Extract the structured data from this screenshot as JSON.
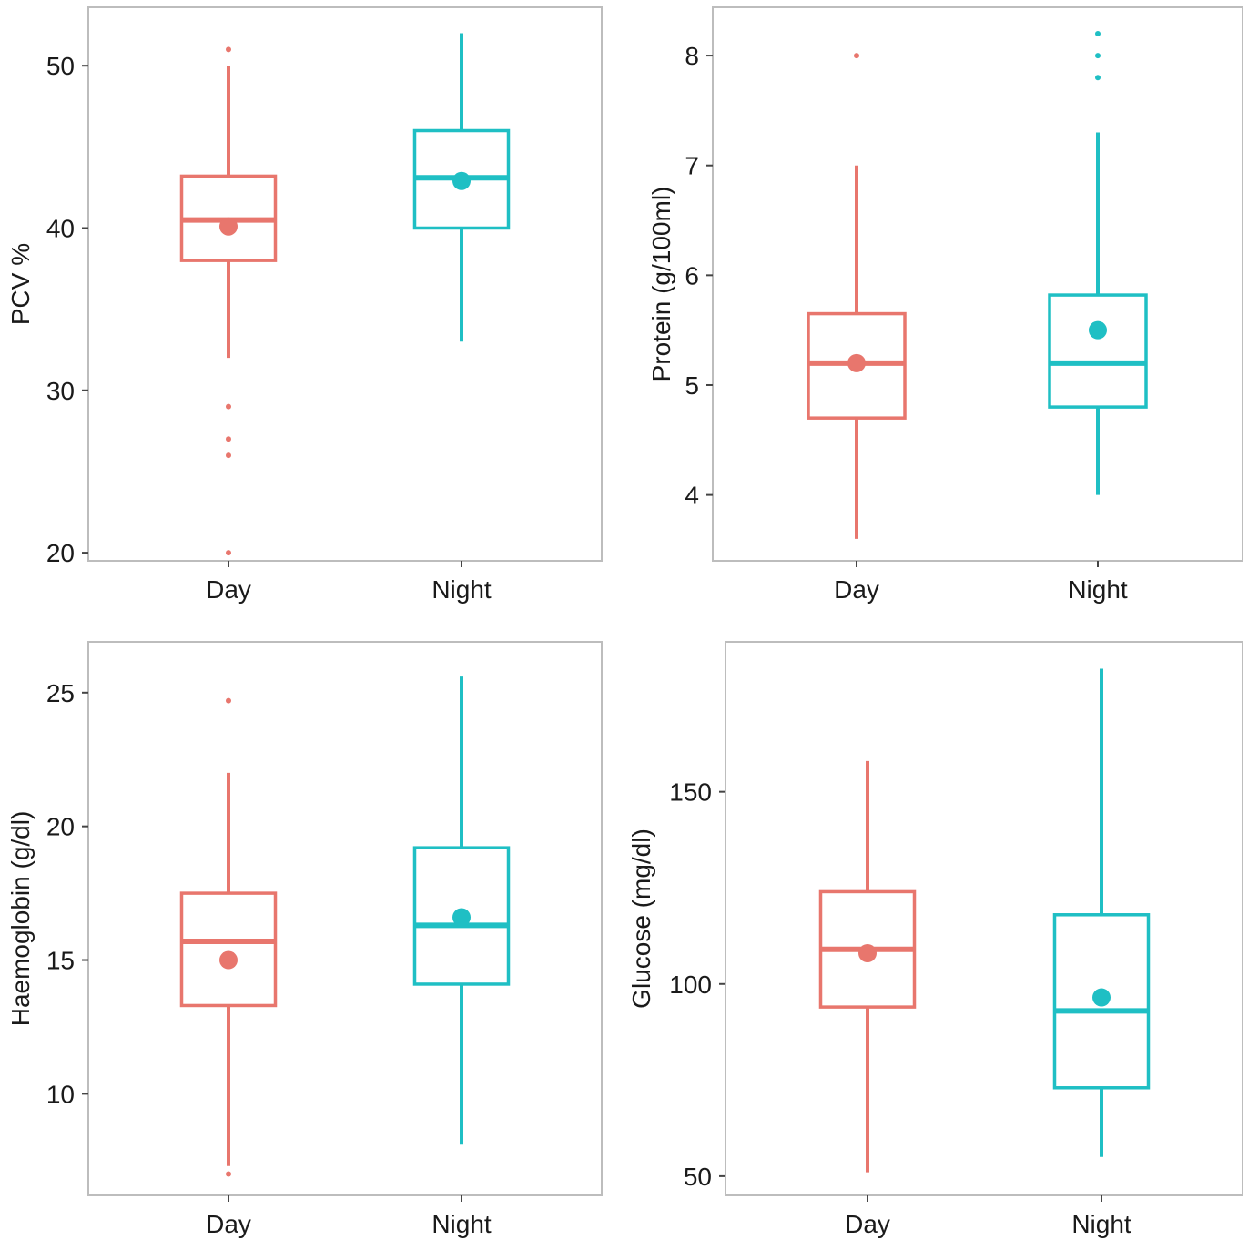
{
  "chart_data": [
    {
      "type": "boxplot",
      "ylabel": "PCV %",
      "categories": [
        "Day",
        "Night"
      ],
      "yticks": [
        20,
        30,
        40,
        50
      ],
      "ylim": [
        19.5,
        53.6
      ],
      "grid": false,
      "boxes": [
        {
          "name": "Day",
          "color": "#E8766D",
          "whisker_low": 32,
          "q1": 38,
          "median": 40.5,
          "q3": 43.2,
          "whisker_high": 50,
          "mean": 40.1,
          "outliers": [
            51,
            29,
            27,
            26,
            20
          ]
        },
        {
          "name": "Night",
          "color": "#1FBFC4",
          "whisker_low": 33,
          "q1": 40,
          "median": 43.1,
          "q3": 46,
          "whisker_high": 52,
          "mean": 42.9,
          "outliers": []
        }
      ]
    },
    {
      "type": "boxplot",
      "ylabel": "Protein (g/100ml)",
      "categories": [
        "Day",
        "Night"
      ],
      "yticks": [
        4,
        5,
        6,
        7,
        8
      ],
      "ylim": [
        3.4,
        8.44
      ],
      "grid": false,
      "boxes": [
        {
          "name": "Day",
          "color": "#E8766D",
          "whisker_low": 3.6,
          "q1": 4.7,
          "median": 5.2,
          "q3": 5.65,
          "whisker_high": 7.0,
          "mean": 5.2,
          "outliers": [
            8.0
          ]
        },
        {
          "name": "Night",
          "color": "#1FBFC4",
          "whisker_low": 4.0,
          "q1": 4.8,
          "median": 5.2,
          "q3": 5.82,
          "whisker_high": 7.3,
          "mean": 5.5,
          "outliers": [
            8.2,
            8.0,
            7.8
          ]
        }
      ]
    },
    {
      "type": "boxplot",
      "ylabel": "Haemoglobin (g/dl)",
      "categories": [
        "Day",
        "Night"
      ],
      "yticks": [
        10,
        15,
        20,
        25
      ],
      "ylim": [
        6.2,
        26.9
      ],
      "grid": false,
      "boxes": [
        {
          "name": "Day",
          "color": "#E8766D",
          "whisker_low": 7.3,
          "q1": 13.3,
          "median": 15.7,
          "q3": 17.5,
          "whisker_high": 22.0,
          "mean": 15.0,
          "outliers": [
            24.7,
            7.0
          ]
        },
        {
          "name": "Night",
          "color": "#1FBFC4",
          "whisker_low": 8.1,
          "q1": 14.1,
          "median": 16.3,
          "q3": 19.2,
          "whisker_high": 25.6,
          "mean": 16.6,
          "outliers": []
        }
      ]
    },
    {
      "type": "boxplot",
      "ylabel": "Glucose (mg/dl)",
      "categories": [
        "Day",
        "Night"
      ],
      "yticks": [
        50,
        100,
        150
      ],
      "ylim": [
        45,
        189
      ],
      "grid": false,
      "boxes": [
        {
          "name": "Day",
          "color": "#E8766D",
          "whisker_low": 51,
          "q1": 94,
          "median": 109,
          "q3": 124,
          "whisker_high": 158,
          "mean": 108,
          "outliers": []
        },
        {
          "name": "Night",
          "color": "#1FBFC4",
          "whisker_low": 55,
          "q1": 73,
          "median": 93,
          "q3": 118,
          "whisker_high": 182,
          "mean": 96.5,
          "outliers": []
        }
      ]
    }
  ]
}
